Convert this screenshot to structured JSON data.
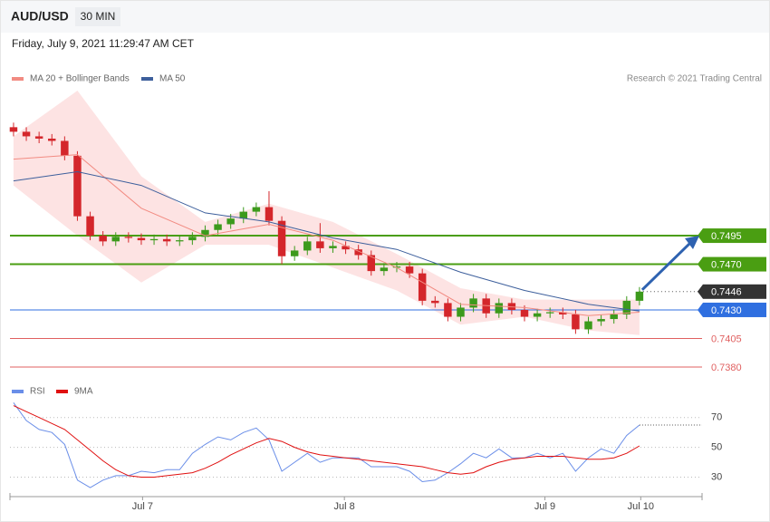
{
  "title": "AUD/USD",
  "interval": "30 MIN",
  "timestamp": "Friday, July 9, 2021 11:29:47 AM CET",
  "credit": "Research © 2021 Trading Central",
  "chart_data": [
    {
      "type": "candlestick",
      "up_color": "#3c9a1c",
      "down_color": "#d4262b",
      "open": [
        0.759,
        0.7586,
        0.7582,
        0.758,
        0.7578,
        0.7565,
        0.7512,
        0.7495,
        0.749,
        0.7494,
        0.7493,
        0.7491,
        0.7492,
        0.749,
        0.7491,
        0.7494,
        0.75,
        0.7505,
        0.751,
        0.7516,
        0.752,
        0.7508,
        0.7477,
        0.7482,
        0.749,
        0.7484,
        0.7486,
        0.7483,
        0.7478,
        0.7464,
        0.7467,
        0.7468,
        0.7462,
        0.7438,
        0.7436,
        0.7424,
        0.7432,
        0.744,
        0.7427,
        0.7436,
        0.743,
        0.7424,
        0.7427,
        0.7428,
        0.7426,
        0.7413,
        0.742,
        0.7422,
        0.7426,
        0.7438
      ],
      "high": [
        0.7594,
        0.759,
        0.7586,
        0.7584,
        0.7582,
        0.7569,
        0.7516,
        0.7499,
        0.7498,
        0.7498,
        0.7497,
        0.7496,
        0.7496,
        0.7495,
        0.7498,
        0.7504,
        0.7509,
        0.7514,
        0.752,
        0.7524,
        0.7534,
        0.7512,
        0.7486,
        0.7494,
        0.7506,
        0.749,
        0.749,
        0.7487,
        0.7482,
        0.7471,
        0.7472,
        0.7472,
        0.7466,
        0.7442,
        0.744,
        0.7436,
        0.7444,
        0.7444,
        0.744,
        0.744,
        0.7434,
        0.7431,
        0.7432,
        0.7432,
        0.743,
        0.7424,
        0.7426,
        0.743,
        0.7442,
        0.745
      ],
      "low": [
        0.7582,
        0.7578,
        0.7576,
        0.7574,
        0.7561,
        0.7508,
        0.7491,
        0.7486,
        0.7486,
        0.7489,
        0.7487,
        0.7487,
        0.7486,
        0.7486,
        0.7487,
        0.749,
        0.7496,
        0.7501,
        0.7506,
        0.7512,
        0.7504,
        0.747,
        0.7473,
        0.7478,
        0.748,
        0.748,
        0.7479,
        0.7474,
        0.746,
        0.746,
        0.7463,
        0.7458,
        0.7434,
        0.7432,
        0.742,
        0.742,
        0.7428,
        0.7423,
        0.7423,
        0.7426,
        0.742,
        0.742,
        0.7423,
        0.7422,
        0.7409,
        0.7409,
        0.7416,
        0.7418,
        0.7422,
        0.7434
      ],
      "close": [
        0.7586,
        0.7582,
        0.758,
        0.7578,
        0.7565,
        0.7512,
        0.7495,
        0.749,
        0.7494,
        0.7493,
        0.7491,
        0.7492,
        0.749,
        0.7491,
        0.7494,
        0.75,
        0.7505,
        0.751,
        0.7516,
        0.752,
        0.7508,
        0.7477,
        0.7482,
        0.749,
        0.7484,
        0.7486,
        0.7483,
        0.7478,
        0.7464,
        0.7467,
        0.7468,
        0.7462,
        0.7438,
        0.7436,
        0.7424,
        0.7432,
        0.744,
        0.7427,
        0.7436,
        0.743,
        0.7424,
        0.7427,
        0.7428,
        0.7426,
        0.7413,
        0.742,
        0.7422,
        0.7426,
        0.7438,
        0.7446
      ],
      "ma_x": [
        0,
        5,
        10,
        15,
        20,
        25,
        30,
        35,
        40,
        45,
        49
      ],
      "series": [
        {
          "name": "MA 20 + Bollinger Bands",
          "color": "#f28b82",
          "band_color": "#fde3e3",
          "values": [
            0.7562,
            0.7566,
            0.7519,
            0.7495,
            0.7505,
            0.7491,
            0.7467,
            0.7435,
            0.7432,
            0.7425,
            0.7428
          ],
          "upper": [
            0.7582,
            0.7622,
            0.7547,
            0.7507,
            0.7523,
            0.7507,
            0.7479,
            0.7449,
            0.7439,
            0.7439,
            0.7439
          ],
          "lower": [
            0.7539,
            0.7495,
            0.7454,
            0.7487,
            0.7487,
            0.7467,
            0.7447,
            0.7417,
            0.7424,
            0.7412,
            0.7408
          ]
        },
        {
          "name": "MA 50",
          "color": "#3d5f9c",
          "values": [
            0.7543,
            0.7551,
            0.7539,
            0.7515,
            0.7507,
            0.7493,
            0.7483,
            0.7463,
            0.7447,
            0.7435,
            0.7429
          ]
        }
      ],
      "levels": [
        {
          "value": 0.7495,
          "color": "#4a9e12"
        },
        {
          "value": 0.747,
          "label": "0.7470",
          "color": "#4a9e12"
        },
        {
          "value": 0.7446,
          "color": "#333333"
        },
        {
          "value": 0.743,
          "label": "0.7430",
          "color": "#2f6fe0"
        },
        {
          "value": 0.7405,
          "color": "#e06060"
        },
        {
          "value": 0.738,
          "label": "0.7380",
          "color": "#e06060"
        }
      ],
      "xlim": [
        -0.28,
        53.9
      ],
      "ylim": [
        0.7376,
        0.7626
      ],
      "xticks": [
        {
          "value": 10.1,
          "label": "Jul 7"
        },
        {
          "value": 25.9,
          "label": "Jul 8"
        },
        {
          "value": 41.6,
          "label": "Jul 9"
        },
        {
          "value": 49.1,
          "label": "Jul 10"
        }
      ]
    },
    {
      "type": "line",
      "xlim": [
        -0.28,
        53.9
      ],
      "ylim": [
        20,
        82
      ],
      "yticks": [
        30,
        50,
        70
      ],
      "series": [
        {
          "name": "RSI",
          "color": "#6a8ee8",
          "values": [
            80,
            68,
            62,
            60,
            52,
            28,
            23,
            28,
            31,
            31,
            34,
            33,
            35,
            35,
            46,
            52,
            57,
            55,
            60,
            63,
            55,
            34,
            40,
            46,
            40,
            43,
            43,
            43,
            37,
            37,
            37,
            34,
            27,
            28,
            33,
            39,
            46,
            43,
            49,
            43,
            43,
            46,
            43,
            46,
            34,
            43,
            49,
            46,
            58,
            65
          ]
        },
        {
          "name": "9MA",
          "color": "#e01010",
          "values": [
            78,
            74,
            70,
            66,
            62,
            55,
            48,
            41,
            35,
            31,
            30,
            30,
            31,
            32,
            33,
            36,
            40,
            45,
            49,
            53,
            56,
            54,
            50,
            47,
            45,
            44,
            43,
            42,
            41,
            40,
            39,
            38,
            37,
            35,
            33,
            32,
            33,
            37,
            40,
            42,
            43,
            44,
            44,
            44,
            43,
            42,
            42,
            43,
            46,
            51
          ]
        }
      ]
    }
  ]
}
